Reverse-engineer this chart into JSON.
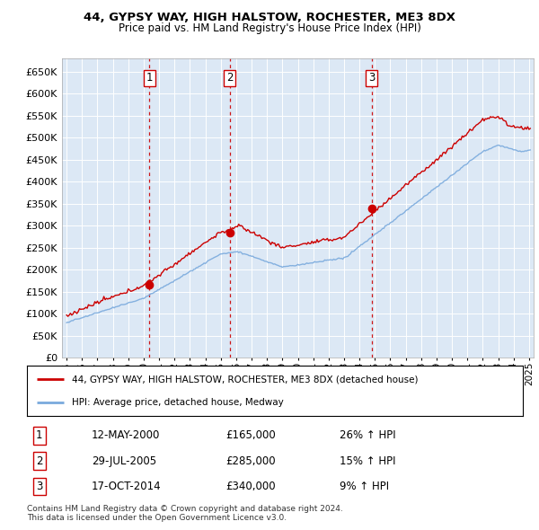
{
  "title1": "44, GYPSY WAY, HIGH HALSTOW, ROCHESTER, ME3 8DX",
  "title2": "Price paid vs. HM Land Registry's House Price Index (HPI)",
  "ylim": [
    0,
    680000
  ],
  "yticks": [
    0,
    50000,
    100000,
    150000,
    200000,
    250000,
    300000,
    350000,
    400000,
    450000,
    500000,
    550000,
    600000,
    650000
  ],
  "xlim_start": 1994.7,
  "xlim_end": 2025.3,
  "plot_bg": "#dce8f5",
  "sale_dates": [
    2000.37,
    2005.58,
    2014.79
  ],
  "sale_prices": [
    165000,
    285000,
    340000
  ],
  "sale_labels": [
    "1",
    "2",
    "3"
  ],
  "legend_line1": "44, GYPSY WAY, HIGH HALSTOW, ROCHESTER, ME3 8DX (detached house)",
  "legend_line2": "HPI: Average price, detached house, Medway",
  "table_data": [
    [
      "1",
      "12-MAY-2000",
      "£165,000",
      "26% ↑ HPI"
    ],
    [
      "2",
      "29-JUL-2005",
      "£285,000",
      "15% ↑ HPI"
    ],
    [
      "3",
      "17-OCT-2014",
      "£340,000",
      "9% ↑ HPI"
    ]
  ],
  "footer": "Contains HM Land Registry data © Crown copyright and database right 2024.\nThis data is licensed under the Open Government Licence v3.0.",
  "red_color": "#cc0000",
  "blue_color": "#7aaadd"
}
